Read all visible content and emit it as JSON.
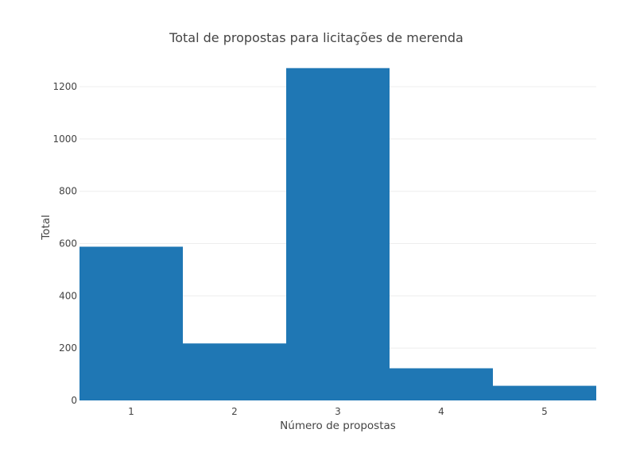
{
  "chart_data": {
    "type": "bar",
    "title": "Total de propostas para licitações de merenda",
    "xlabel": "Número de propostas",
    "ylabel": "Total",
    "categories": [
      "1",
      "2",
      "3",
      "4",
      "5"
    ],
    "values": [
      588,
      218,
      1271,
      123,
      56
    ],
    "ylim": [
      0,
      1337
    ],
    "yticks": [
      0,
      200,
      400,
      600,
      800,
      1000,
      1200
    ],
    "grid": true,
    "bar_color": "#1f77b4",
    "gridline_color": "#eeeeee"
  }
}
